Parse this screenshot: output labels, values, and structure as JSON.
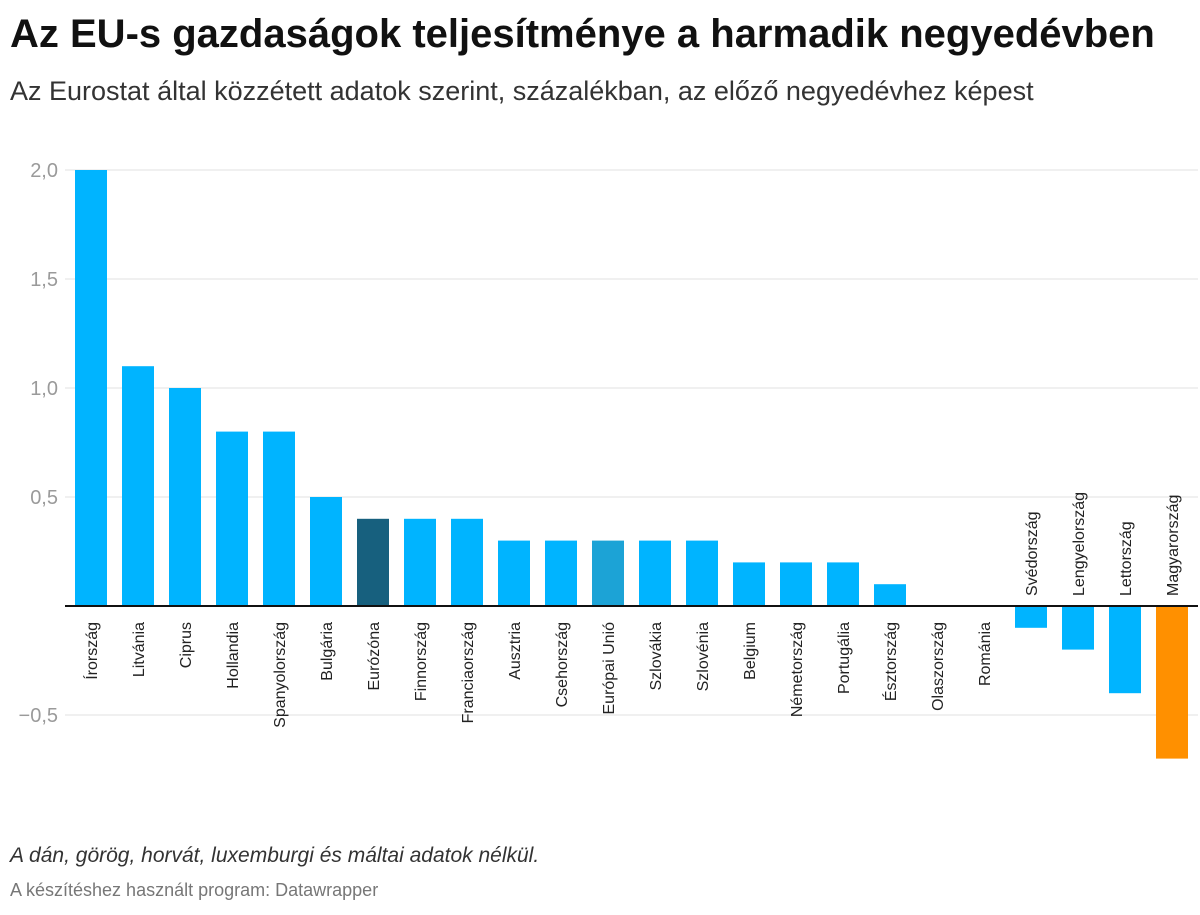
{
  "title": "Az EU-s gazdaságok teljesítménye a harmadik negyedévben",
  "subtitle": "Az Eurostat által közzétett adatok szerint, százalékban, az előző negyedévhez képest",
  "note": "A dán, görög, horvát, luxemburgi és máltai adatok nélkül.",
  "credit": "A készítéshez használt program: Datawrapper",
  "colors": {
    "default": "#00b4ff",
    "eurozone": "#17607e",
    "eu": "#1ca3d6",
    "hungary": "#ff9000",
    "grid": "#e0e0e0",
    "baseline": "#111111"
  },
  "chart_data": {
    "type": "bar",
    "categories": [
      "Írország",
      "Litvánia",
      "Ciprus",
      "Hollandia",
      "Spanyolország",
      "Bulgária",
      "Eurózóna",
      "Finnország",
      "Franciaország",
      "Ausztria",
      "Csehország",
      "Európai Unió",
      "Szlovákia",
      "Szlovénia",
      "Belgium",
      "Németország",
      "Portugália",
      "Észtország",
      "Olaszország",
      "Románia",
      "Svédország",
      "Lengyelország",
      "Lettország",
      "Magyarország"
    ],
    "values": [
      2.0,
      1.1,
      1.0,
      0.8,
      0.8,
      0.5,
      0.4,
      0.4,
      0.4,
      0.3,
      0.3,
      0.3,
      0.3,
      0.3,
      0.2,
      0.2,
      0.2,
      0.1,
      0.0,
      0.0,
      -0.1,
      -0.2,
      -0.4,
      -0.7
    ],
    "highlight": {
      "Eurózóna": "eurozone",
      "Európai Unió": "eu",
      "Magyarország": "hungary"
    },
    "yticks": [
      "2,0",
      "1,5",
      "1,0",
      "0,5",
      "−0,5"
    ],
    "ytick_values": [
      2.0,
      1.5,
      1.0,
      0.5,
      -0.5
    ],
    "ylim": [
      -0.7,
      2.0
    ],
    "grid": true,
    "xlabel": "",
    "ylabel": ""
  }
}
